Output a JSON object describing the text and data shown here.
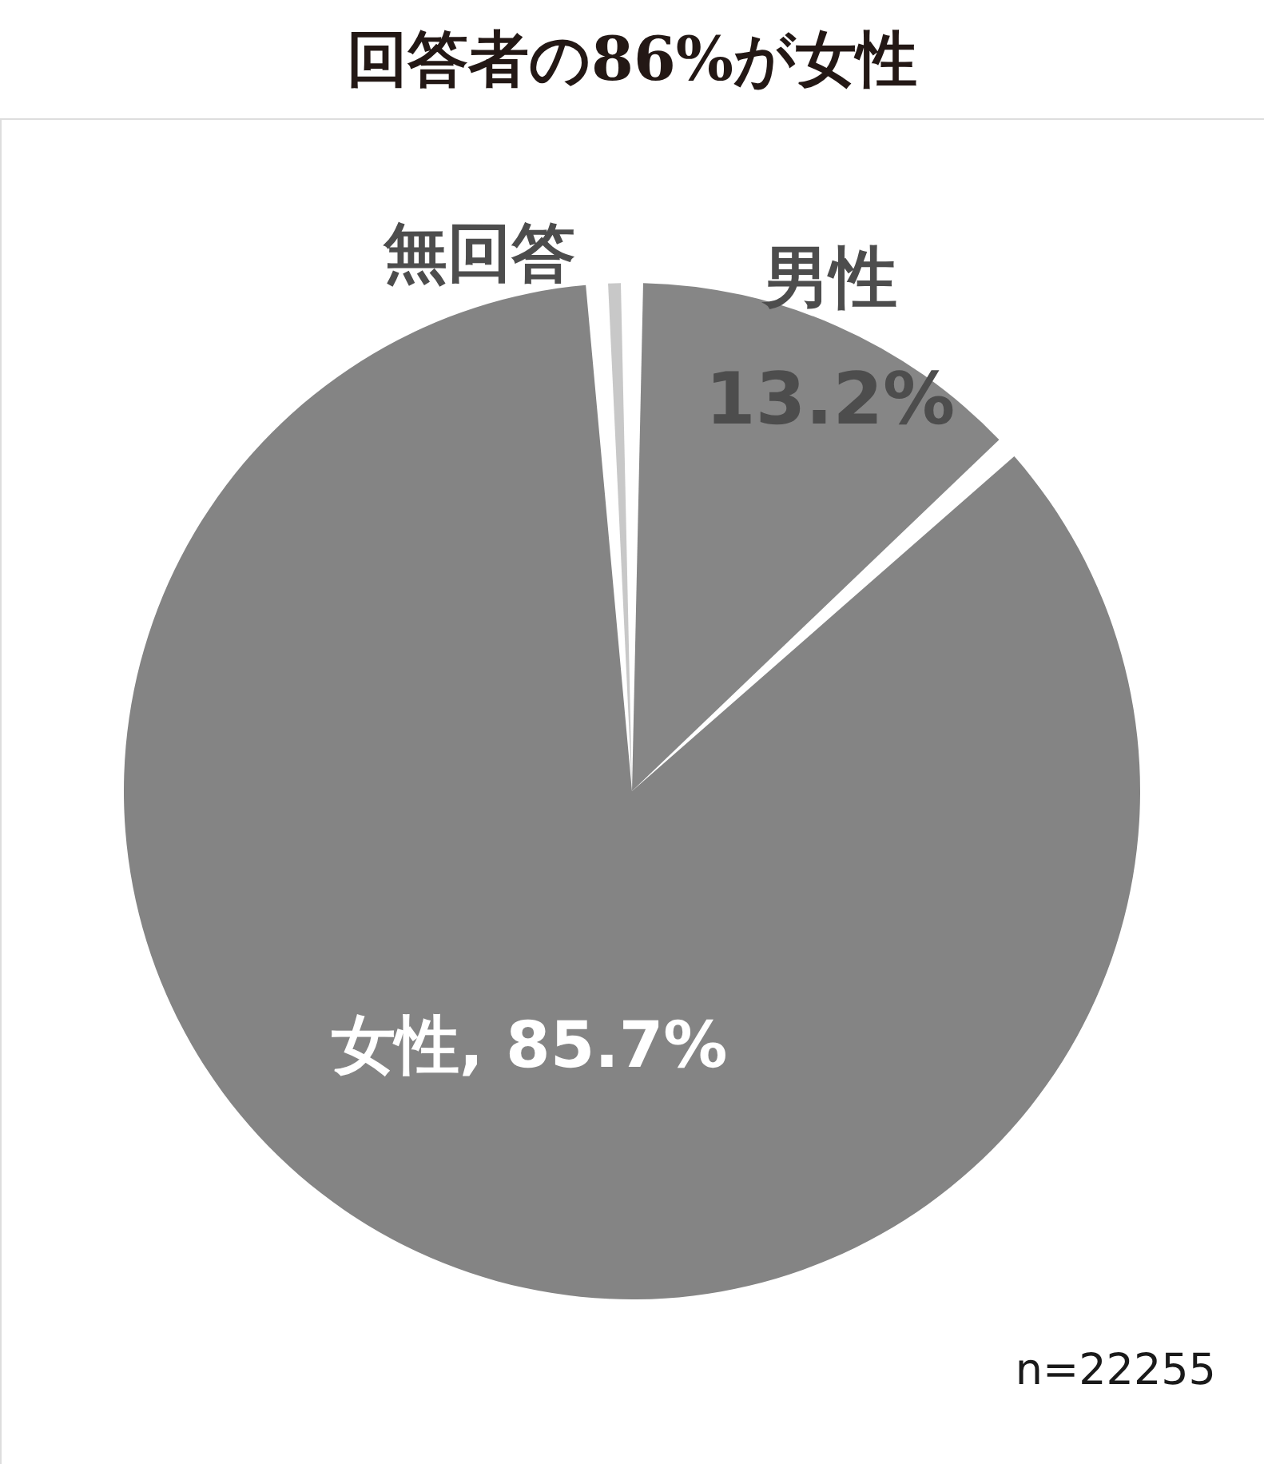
{
  "chart_data": {
    "type": "pie",
    "title": "回答者の86%が女性",
    "categories": [
      "男性",
      "女性",
      "無回答"
    ],
    "values": [
      13.2,
      85.7,
      1.1
    ],
    "colors": [
      "#868686",
      "#848484",
      "#c8c8c8"
    ],
    "value_labels": [
      "13.2%",
      "85.7%",
      null
    ],
    "legend": false,
    "annotations": [
      "n=22255"
    ]
  }
}
